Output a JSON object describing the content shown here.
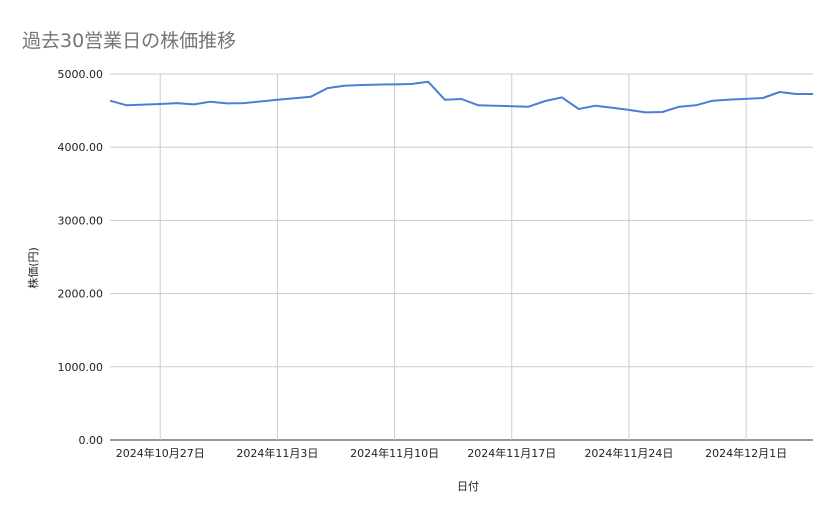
{
  "chart_data": {
    "type": "line",
    "title": "過去30営業日の株価推移",
    "xlabel": "日付",
    "ylabel": "株価(円)",
    "ylim": [
      0,
      5000
    ],
    "xlim": [
      "2024-10-24",
      "2024-12-05"
    ],
    "grid": true,
    "legend": "none",
    "line_color": "#4a7fd6",
    "y_ticks": [
      "0.00",
      "1000.00",
      "2000.00",
      "3000.00",
      "4000.00",
      "5000.00"
    ],
    "x_ticks": [
      {
        "date": "2024-10-27",
        "label": "2024年10月27日"
      },
      {
        "date": "2024-11-03",
        "label": "2024年11月3日"
      },
      {
        "date": "2024-11-10",
        "label": "2024年11月10日"
      },
      {
        "date": "2024-11-17",
        "label": "2024年11月17日"
      },
      {
        "date": "2024-11-24",
        "label": "2024年11月24日"
      },
      {
        "date": "2024-12-01",
        "label": "2024年12月1日"
      }
    ],
    "series": [
      {
        "points": [
          [
            "2024-10-24",
            4635
          ],
          [
            "2024-10-25",
            4572
          ],
          [
            "2024-10-27",
            4590
          ],
          [
            "2024-10-28",
            4603
          ],
          [
            "2024-10-29",
            4585
          ],
          [
            "2024-10-30",
            4621
          ],
          [
            "2024-10-31",
            4599
          ],
          [
            "2024-11-01",
            4603
          ],
          [
            "2024-11-03",
            4649
          ],
          [
            "2024-11-05",
            4690
          ],
          [
            "2024-11-06",
            4808
          ],
          [
            "2024-11-07",
            4840
          ],
          [
            "2024-11-08",
            4850
          ],
          [
            "2024-11-09",
            4855
          ],
          [
            "2024-11-10",
            4858
          ],
          [
            "2024-11-11",
            4863
          ],
          [
            "2024-11-12",
            4895
          ],
          [
            "2024-11-13",
            4649
          ],
          [
            "2024-11-14",
            4658
          ],
          [
            "2024-11-15",
            4572
          ],
          [
            "2024-11-16",
            4566
          ],
          [
            "2024-11-17",
            4560
          ],
          [
            "2024-11-18",
            4553
          ],
          [
            "2024-11-19",
            4631
          ],
          [
            "2024-11-20",
            4681
          ],
          [
            "2024-11-21",
            4522
          ],
          [
            "2024-11-22",
            4567
          ],
          [
            "2024-11-23",
            4540
          ],
          [
            "2024-11-24",
            4510
          ],
          [
            "2024-11-25",
            4476
          ],
          [
            "2024-11-26",
            4481
          ],
          [
            "2024-11-27",
            4553
          ],
          [
            "2024-11-28",
            4572
          ],
          [
            "2024-11-29",
            4635
          ],
          [
            "2024-11-30",
            4650
          ],
          [
            "2024-12-01",
            4660
          ],
          [
            "2024-12-02",
            4672
          ],
          [
            "2024-12-03",
            4754
          ],
          [
            "2024-12-04",
            4727
          ],
          [
            "2024-12-05",
            4727
          ]
        ]
      }
    ]
  }
}
